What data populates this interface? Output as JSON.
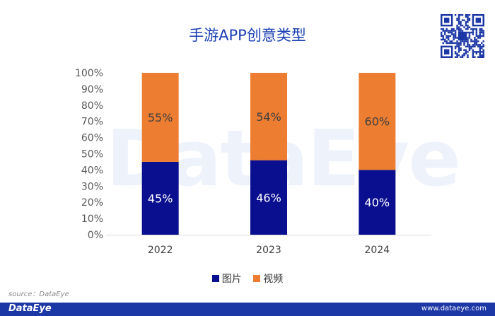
{
  "title": "手游APP创意类型",
  "watermark": "DataEye",
  "source": "source：DataEye",
  "footer": {
    "brand": "DataEye",
    "site": "www.dataeye.com"
  },
  "colors": {
    "image": "#0a0f8f",
    "video": "#ed7d31",
    "title": "#1a3fb5",
    "footer": "#1c37a6"
  },
  "chart_data": {
    "type": "bar",
    "stacked": true,
    "categories": [
      "2022",
      "2023",
      "2024"
    ],
    "series": [
      {
        "name": "图片",
        "values": [
          45,
          46,
          40
        ],
        "labels": [
          "45%",
          "46%",
          "40%"
        ]
      },
      {
        "name": "视频",
        "values": [
          55,
          54,
          60
        ],
        "labels": [
          "55%",
          "54%",
          "60%"
        ]
      }
    ],
    "ylim": [
      0,
      100
    ],
    "yticks": [
      "0%",
      "10%",
      "20%",
      "30%",
      "40%",
      "50%",
      "60%",
      "70%",
      "80%",
      "90%",
      "100%"
    ],
    "legend": "bottom",
    "grid": false
  }
}
